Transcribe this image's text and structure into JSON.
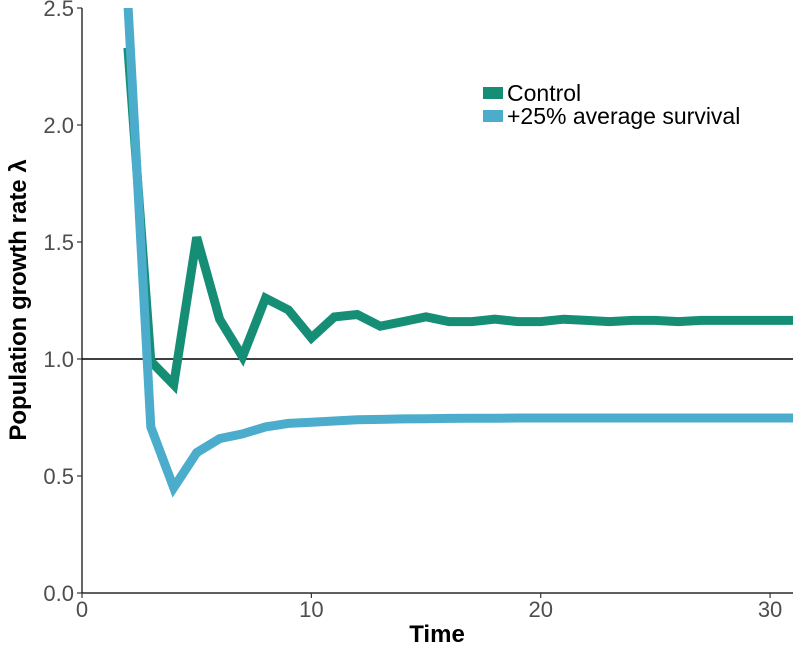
{
  "chart_data": {
    "type": "line",
    "xlabel": "Time",
    "ylabel": "Population growth rate λ",
    "xlim": [
      0,
      31
    ],
    "ylim": [
      0,
      2.5
    ],
    "x_ticks": [
      0,
      10,
      20,
      30
    ],
    "x_tick_labels": [
      "0",
      "10",
      "20",
      "30"
    ],
    "y_ticks": [
      0,
      0.5,
      1.0,
      1.5,
      2.0,
      2.5
    ],
    "y_tick_labels": [
      "0.0",
      "0.5",
      "1.0",
      "1.5",
      "2.0",
      "2.5"
    ],
    "reference_line_y": 1.0,
    "grid": false,
    "legend_position": "top-right",
    "series": [
      {
        "name": "Control",
        "color": "#168e76",
        "x": [
          2,
          3,
          4,
          5,
          6,
          7,
          8,
          9,
          10,
          11,
          12,
          13,
          14,
          15,
          16,
          17,
          18,
          19,
          20,
          21,
          22,
          23,
          24,
          25,
          26,
          27,
          28,
          29,
          30,
          31
        ],
        "values": [
          2.33,
          0.99,
          0.89,
          1.52,
          1.17,
          1.01,
          1.26,
          1.21,
          1.09,
          1.18,
          1.19,
          1.14,
          1.16,
          1.18,
          1.16,
          1.16,
          1.17,
          1.16,
          1.16,
          1.17,
          1.165,
          1.16,
          1.165,
          1.165,
          1.16,
          1.165,
          1.165,
          1.165,
          1.165,
          1.165
        ]
      },
      {
        "name": "+25% average survival",
        "color": "#4badcb",
        "x": [
          2,
          3,
          4,
          5,
          6,
          7,
          8,
          9,
          10,
          11,
          12,
          13,
          14,
          15,
          16,
          17,
          18,
          19,
          20,
          21,
          22,
          23,
          24,
          25,
          26,
          27,
          28,
          29,
          30,
          31
        ],
        "values": [
          2.52,
          0.71,
          0.45,
          0.6,
          0.66,
          0.68,
          0.71,
          0.725,
          0.73,
          0.735,
          0.74,
          0.742,
          0.744,
          0.745,
          0.746,
          0.747,
          0.747,
          0.748,
          0.748,
          0.748,
          0.748,
          0.748,
          0.748,
          0.748,
          0.748,
          0.748,
          0.748,
          0.748,
          0.748,
          0.748
        ]
      }
    ]
  }
}
